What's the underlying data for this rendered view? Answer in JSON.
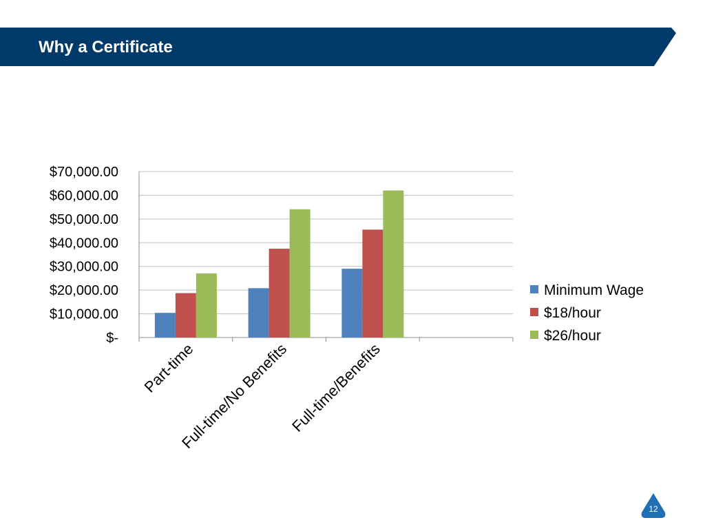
{
  "slide": {
    "title": "Why a Certificate",
    "page_number": "12"
  },
  "colors": {
    "header_bar": "#003a6b",
    "badge": "#1f6fb5",
    "gridline": "#bfbfbf",
    "axis": "#8c8c8c"
  },
  "chart_data": {
    "type": "bar",
    "categories": [
      "Part-time",
      "Full-time/No Benefits",
      "Full-time/Benefits",
      ""
    ],
    "series": [
      {
        "name": "Minimum Wage",
        "color": "#4f81bd",
        "values": [
          10400,
          20800,
          29000,
          null
        ]
      },
      {
        "name": "$18/hour",
        "color": "#c0504d",
        "values": [
          18720,
          37440,
          45500,
          null
        ]
      },
      {
        "name": "$26/hour",
        "color": "#9bbb59",
        "values": [
          27040,
          54080,
          62000,
          null
        ]
      }
    ],
    "ylim": [
      0,
      70000
    ],
    "y_ticks": [
      0,
      10000,
      20000,
      30000,
      40000,
      50000,
      60000,
      70000
    ],
    "y_tick_labels": [
      "$-",
      "$10,000.00",
      "$20,000.00",
      "$30,000.00",
      "$40,000.00",
      "$50,000.00",
      "$60,000.00",
      "$70,000.00"
    ],
    "grid": true,
    "legend_position": "right",
    "title": "",
    "xlabel": "",
    "ylabel": ""
  }
}
